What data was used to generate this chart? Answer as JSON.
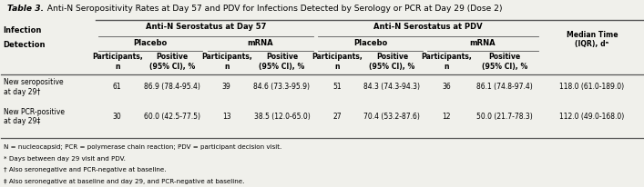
{
  "title_bold": "Table 3.",
  "title_rest": "  Anti-N Seropositivity Rates at Day 57 and PDV for Infections Detected by Serology or PCR at Day 29 (Dose 2)",
  "bg_color": "#f0f0eb",
  "header_line_color": "#555555",
  "col_headers": [
    "Participants,\nn",
    "Positive\n(95% CI), %",
    "Participants,\nn",
    "Positive\n(95% CI), %",
    "Participants,\nn",
    "Positive\n(95% CI), %",
    "Participants,\nn",
    "Positive\n(95% CI), %",
    "Median Time\n(IQR), dᵃ"
  ],
  "rows": [
    {
      "label": "New seropositive\nat day 29†",
      "values": [
        "61",
        "86.9 (78.4-95.4)",
        "39",
        "84.6 (73.3-95.9)",
        "51",
        "84.3 (74.3-94.3)",
        "36",
        "86.1 (74.8-97.4)",
        "118.0 (61.0-189.0)"
      ]
    },
    {
      "label": "New PCR-positive\nat day 29‡",
      "values": [
        "30",
        "60.0 (42.5-77.5)",
        "13",
        "38.5 (12.0-65.0)",
        "27",
        "70.4 (53.2-87.6)",
        "12",
        "50.0 (21.7-78.3)",
        "112.0 (49.0-168.0)"
      ]
    }
  ],
  "footnotes": [
    "N = nucleocapsid; PCR = polymerase chain reaction; PDV = participant decision visit.",
    "* Days between day 29 visit and PDV.",
    "† Also seronegative and PCR-negative at baseline.",
    "‡ Also seronegative at baseline and day 29, and PCR-negative at baseline."
  ],
  "col_starts": [
    0.0,
    0.148,
    0.215,
    0.318,
    0.385,
    0.49,
    0.558,
    0.66,
    0.728,
    0.84
  ],
  "col_ends": [
    0.148,
    0.215,
    0.318,
    0.385,
    0.49,
    0.558,
    0.66,
    0.728,
    0.84,
    1.0
  ]
}
